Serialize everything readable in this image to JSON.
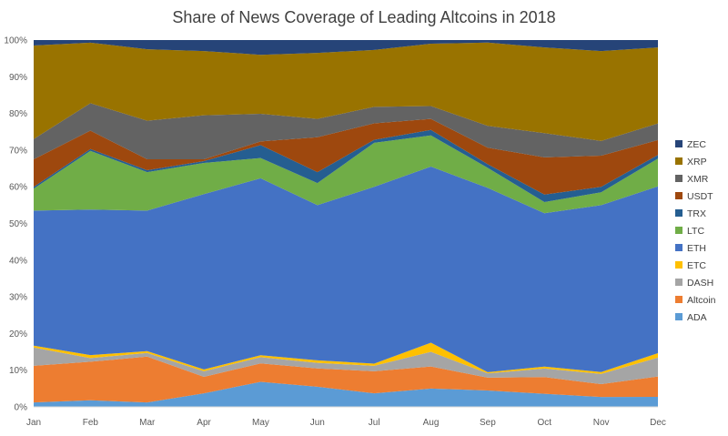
{
  "chart_data": {
    "type": "area",
    "stacked": "percent",
    "title": "Share of News Coverage of Leading Altcoins in 2018",
    "xlabel": "",
    "ylabel": "",
    "ylim": [
      0,
      100
    ],
    "y_ticks": [
      "0%",
      "10%",
      "20%",
      "30%",
      "40%",
      "50%",
      "60%",
      "70%",
      "80%",
      "90%",
      "100%"
    ],
    "grid": false,
    "legend_position": "right",
    "categories": [
      "Jan",
      "Feb",
      "Mar",
      "Apr",
      "May",
      "Jun",
      "Jul",
      "Aug",
      "Sep",
      "Oct",
      "Nov",
      "Dec"
    ],
    "series": [
      {
        "name": "ADA",
        "color": "#5B9BD5",
        "values": [
          1.2,
          1.8,
          1.2,
          3.7,
          6.8,
          5.5,
          3.7,
          5.0,
          4.5,
          3.5,
          2.7,
          2.7
        ]
      },
      {
        "name": "Altcoin",
        "color": "#ED7D31",
        "values": [
          10.0,
          10.5,
          12.5,
          4.5,
          5.0,
          5.0,
          6.0,
          6.0,
          3.5,
          4.5,
          3.5,
          5.5
        ]
      },
      {
        "name": "DASH",
        "color": "#A5A5A5",
        "values": [
          5.0,
          1.0,
          1.0,
          1.5,
          1.7,
          1.5,
          1.5,
          4.0,
          1.2,
          2.3,
          2.8,
          5.1
        ]
      },
      {
        "name": "ETC",
        "color": "#FFC000",
        "values": [
          0.5,
          0.8,
          0.5,
          0.5,
          0.5,
          0.7,
          0.6,
          2.5,
          0.3,
          0.5,
          0.5,
          1.2
        ]
      },
      {
        "name": "ETH",
        "color": "#4472C4",
        "values": [
          36.8,
          39.7,
          38.3,
          47.8,
          48.0,
          42.3,
          48.2,
          48.0,
          50.5,
          41.2,
          45.5,
          45.0
        ]
      },
      {
        "name": "LTC",
        "color": "#70AD47",
        "values": [
          6.0,
          16.0,
          10.5,
          8.5,
          5.5,
          6.0,
          12.0,
          8.5,
          5.5,
          3.0,
          3.5,
          7.5
        ]
      },
      {
        "name": "TRX",
        "color": "#255E91",
        "values": [
          0.5,
          0.5,
          0.5,
          0.5,
          3.5,
          3.0,
          0.8,
          1.5,
          1.0,
          2.0,
          1.5,
          1.0
        ]
      },
      {
        "name": "USDT",
        "color": "#9E480E",
        "values": [
          7.5,
          5.0,
          3.0,
          0.5,
          1.0,
          9.5,
          4.5,
          3.0,
          4.5,
          10.0,
          8.5,
          4.0
        ]
      },
      {
        "name": "XMR",
        "color": "#636363",
        "values": [
          5.5,
          7.5,
          10.5,
          12.0,
          7.5,
          5.0,
          4.5,
          3.5,
          6.0,
          6.5,
          4.0,
          4.5
        ]
      },
      {
        "name": "XRP",
        "color": "#997300",
        "values": [
          25.5,
          16.5,
          19.5,
          17.5,
          16.0,
          18.0,
          15.5,
          17.0,
          22.8,
          23.0,
          24.5,
          20.5
        ]
      },
      {
        "name": "ZEC",
        "color": "#264478",
        "values": [
          1.5,
          0.7,
          2.5,
          3.0,
          4.0,
          3.5,
          2.7,
          1.0,
          0.7,
          2.0,
          3.0,
          2.0
        ]
      }
    ]
  }
}
